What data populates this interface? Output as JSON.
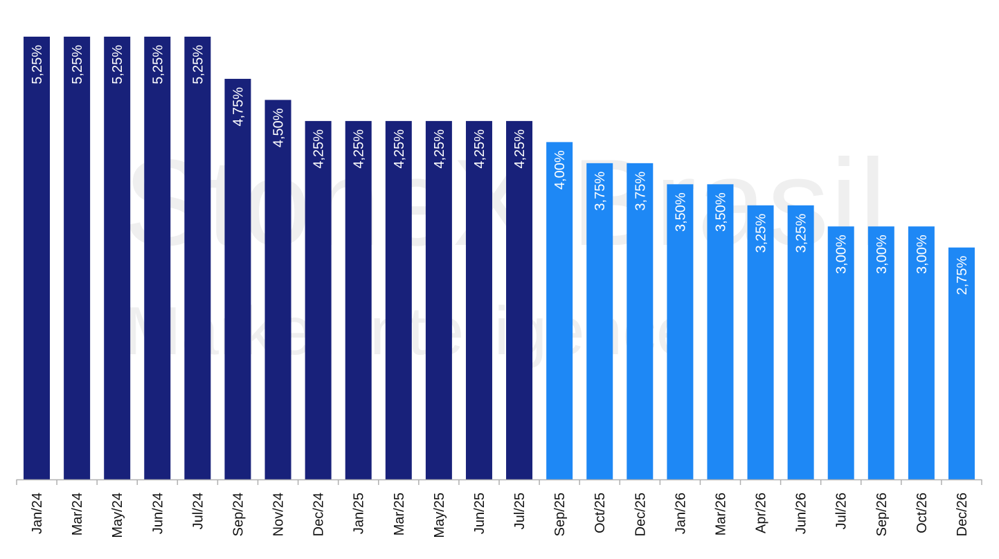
{
  "watermark": {
    "line1": "StoneX Brasil",
    "line2": "Market Intelligence"
  },
  "colors": {
    "historical": "#18217A",
    "projected": "#1E88F5",
    "axis": "#B0B0B0",
    "label_text": "#FFFFFF",
    "tick_text": "#111111"
  },
  "chart_data": {
    "type": "bar",
    "title": "",
    "xlabel": "",
    "ylabel": "",
    "ylim": [
      0,
      5.25
    ],
    "grid": false,
    "legend": "none",
    "categories": [
      "Jan/24",
      "Mar/24",
      "May/24",
      "Jun/24",
      "Jul/24",
      "Sep/24",
      "Nov/24",
      "Dec/24",
      "Jan/25",
      "Mar/25",
      "May/25",
      "Jun/25",
      "Jul/25",
      "Sep/25",
      "Oct/25",
      "Dec/25",
      "Jan/26",
      "Mar/26",
      "Apr/26",
      "Jun/26",
      "Jul/26",
      "Sep/26",
      "Oct/26",
      "Dec/26"
    ],
    "values": [
      5.25,
      5.25,
      5.25,
      5.25,
      5.25,
      4.75,
      4.5,
      4.25,
      4.25,
      4.25,
      4.25,
      4.25,
      4.25,
      4.0,
      3.75,
      3.75,
      3.5,
      3.5,
      3.25,
      3.25,
      3.0,
      3.0,
      3.0,
      2.75
    ],
    "labels": [
      "5,25%",
      "5,25%",
      "5,25%",
      "5,25%",
      "5,25%",
      "4,75%",
      "4,50%",
      "4,25%",
      "4,25%",
      "4,25%",
      "4,25%",
      "4,25%",
      "4,25%",
      "4,00%",
      "3,75%",
      "3,75%",
      "3,50%",
      "3,50%",
      "3,25%",
      "3,25%",
      "3,00%",
      "3,00%",
      "3,00%",
      "2,75%"
    ],
    "segments": [
      "historical",
      "historical",
      "historical",
      "historical",
      "historical",
      "historical",
      "historical",
      "historical",
      "historical",
      "historical",
      "historical",
      "historical",
      "historical",
      "projected",
      "projected",
      "projected",
      "projected",
      "projected",
      "projected",
      "projected",
      "projected",
      "projected",
      "projected",
      "projected"
    ]
  }
}
